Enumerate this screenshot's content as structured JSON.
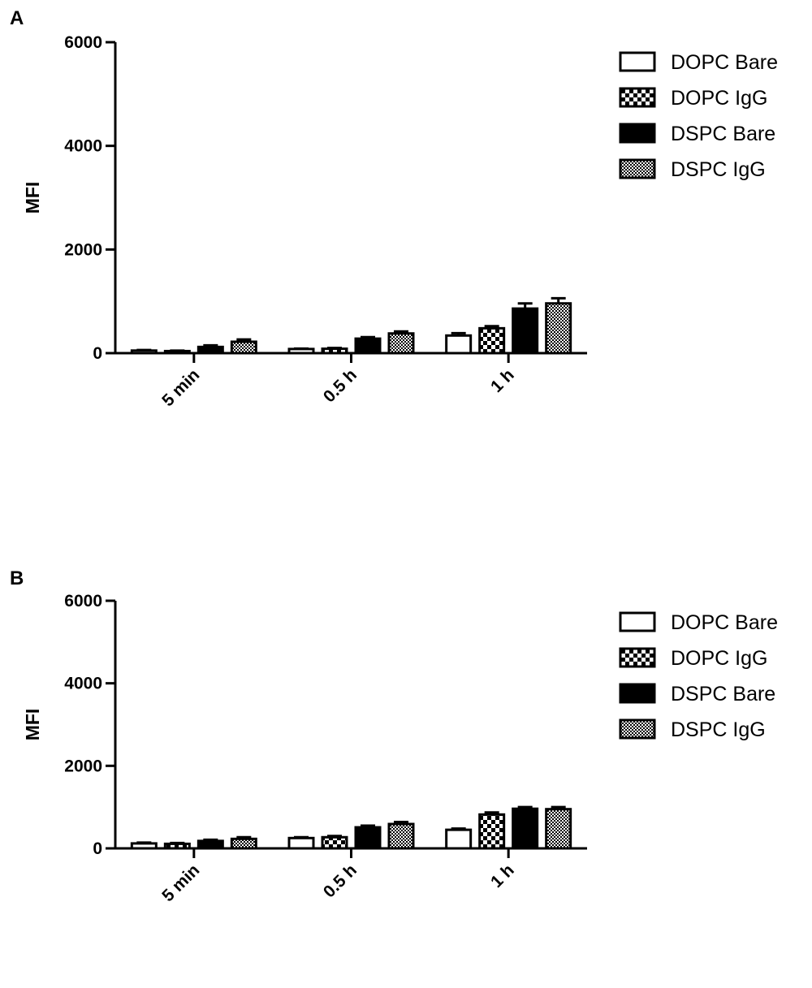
{
  "chart_data": [
    {
      "type": "bar",
      "panel_label": "A",
      "categories": [
        "5 min",
        "0.5 h",
        "1 h"
      ],
      "series": [
        {
          "name": "DOPC Bare",
          "pattern": "open",
          "values": [
            50,
            80,
            340
          ],
          "errors": [
            10,
            8,
            45
          ]
        },
        {
          "name": "DOPC IgG",
          "pattern": "coarse-check",
          "values": [
            40,
            85,
            480
          ],
          "errors": [
            8,
            15,
            40
          ]
        },
        {
          "name": "DSPC Bare",
          "pattern": "solid",
          "values": [
            120,
            280,
            860
          ],
          "errors": [
            30,
            30,
            100
          ]
        },
        {
          "name": "DSPC IgG",
          "pattern": "fine-check",
          "values": [
            220,
            380,
            960
          ],
          "errors": [
            45,
            40,
            100
          ]
        }
      ],
      "xlabel": "",
      "ylabel": "MFI",
      "ylim": [
        0,
        6000
      ],
      "yticks": [
        "0",
        "2000",
        "4000",
        "6000"
      ],
      "legend_position": "top-right",
      "grid": false
    },
    {
      "type": "bar",
      "panel_label": "B",
      "categories": [
        "5 min",
        "0.5 h",
        "1 h"
      ],
      "series": [
        {
          "name": "DOPC Bare",
          "pattern": "open",
          "values": [
            120,
            250,
            450
          ],
          "errors": [
            20,
            20,
            30
          ]
        },
        {
          "name": "DOPC IgG",
          "pattern": "coarse-check",
          "values": [
            110,
            270,
            820
          ],
          "errors": [
            20,
            30,
            50
          ]
        },
        {
          "name": "DSPC Bare",
          "pattern": "solid",
          "values": [
            180,
            510,
            960
          ],
          "errors": [
            30,
            40,
            40
          ]
        },
        {
          "name": "DSPC IgG",
          "pattern": "fine-check",
          "values": [
            230,
            590,
            950
          ],
          "errors": [
            40,
            50,
            50
          ]
        }
      ],
      "xlabel": "",
      "ylabel": "MFI",
      "ylim": [
        0,
        6000
      ],
      "yticks": [
        "0",
        "2000",
        "4000",
        "6000"
      ],
      "legend_position": "top-right",
      "grid": false
    }
  ]
}
